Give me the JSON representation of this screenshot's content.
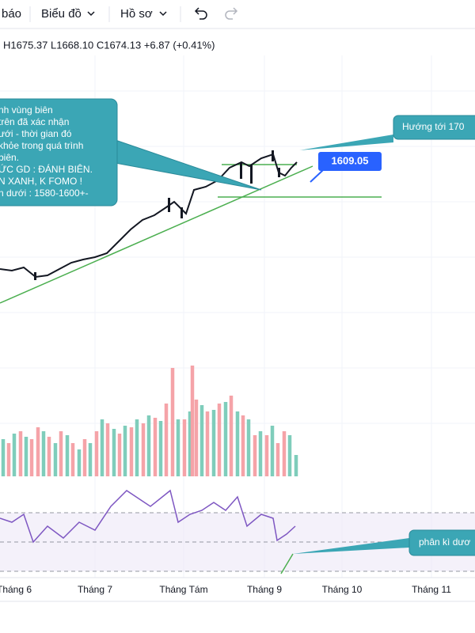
{
  "toolbar": {
    "items": [
      "báo",
      "Biểu đồ",
      "Hồ sơ"
    ]
  },
  "ohlc": "H1675.37 L1668.10 C1674.13 +6.87 (+0.41%)",
  "annotations": {
    "left_note": [
      "nh vùng biên",
      " trên đã xác nhận",
      "ưới - thời gian đó",
      " khỏe trong quá trình",
      "biên.",
      "ỨC GD : ĐÁNH BIÊN.",
      "N XANH, K FOMO !",
      "n dưới : 1580-1600+-"
    ],
    "target_note": "Hướng tới 170",
    "price_label": "1609.05",
    "divergence_note": "phân kì dươ"
  },
  "x_axis": [
    "Tháng 6",
    "Tháng 7",
    "Tháng Tám",
    "Tháng 9",
    "Tháng 10",
    "Tháng 11"
  ]
}
